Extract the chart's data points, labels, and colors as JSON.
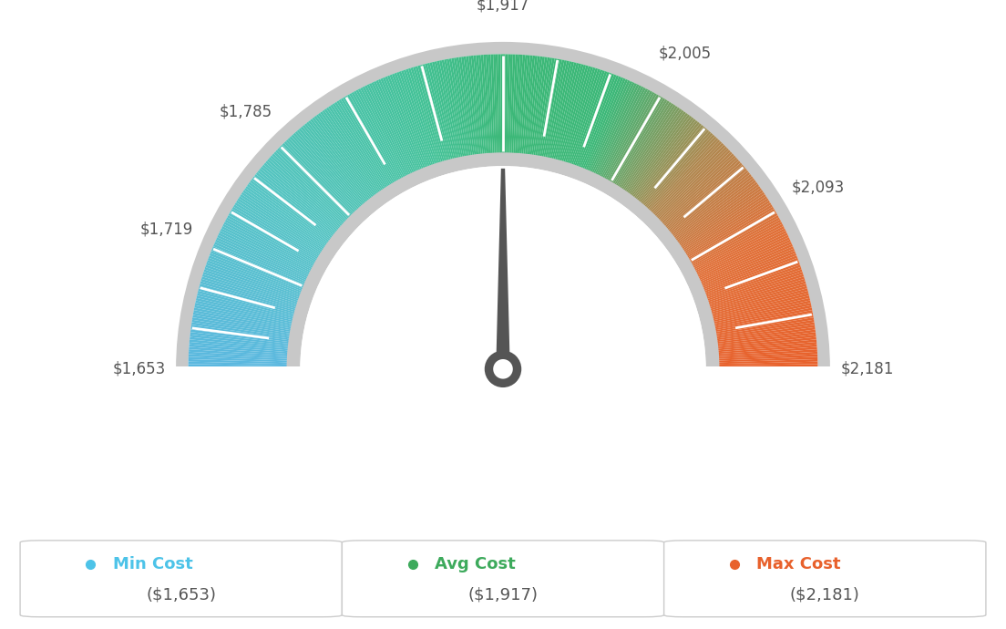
{
  "min_val": 1653,
  "avg_val": 1917,
  "max_val": 2181,
  "tick_labels": [
    "$1,653",
    "$1,719",
    "$1,785",
    "$1,917",
    "$2,005",
    "$2,093",
    "$2,181"
  ],
  "tick_values": [
    1653,
    1719,
    1785,
    1917,
    2005,
    2093,
    2181
  ],
  "legend_labels": [
    "Min Cost",
    "Avg Cost",
    "Max Cost"
  ],
  "legend_values": [
    "($1,653)",
    "($1,917)",
    "($2,181)"
  ],
  "legend_colors": [
    "#4DC3E8",
    "#3DAA5C",
    "#E8612C"
  ],
  "background_color": "#FFFFFF",
  "needle_color": "#555555",
  "outer_ring_color": "#CCCCCC",
  "inner_ring_color": "#CCCCCC"
}
